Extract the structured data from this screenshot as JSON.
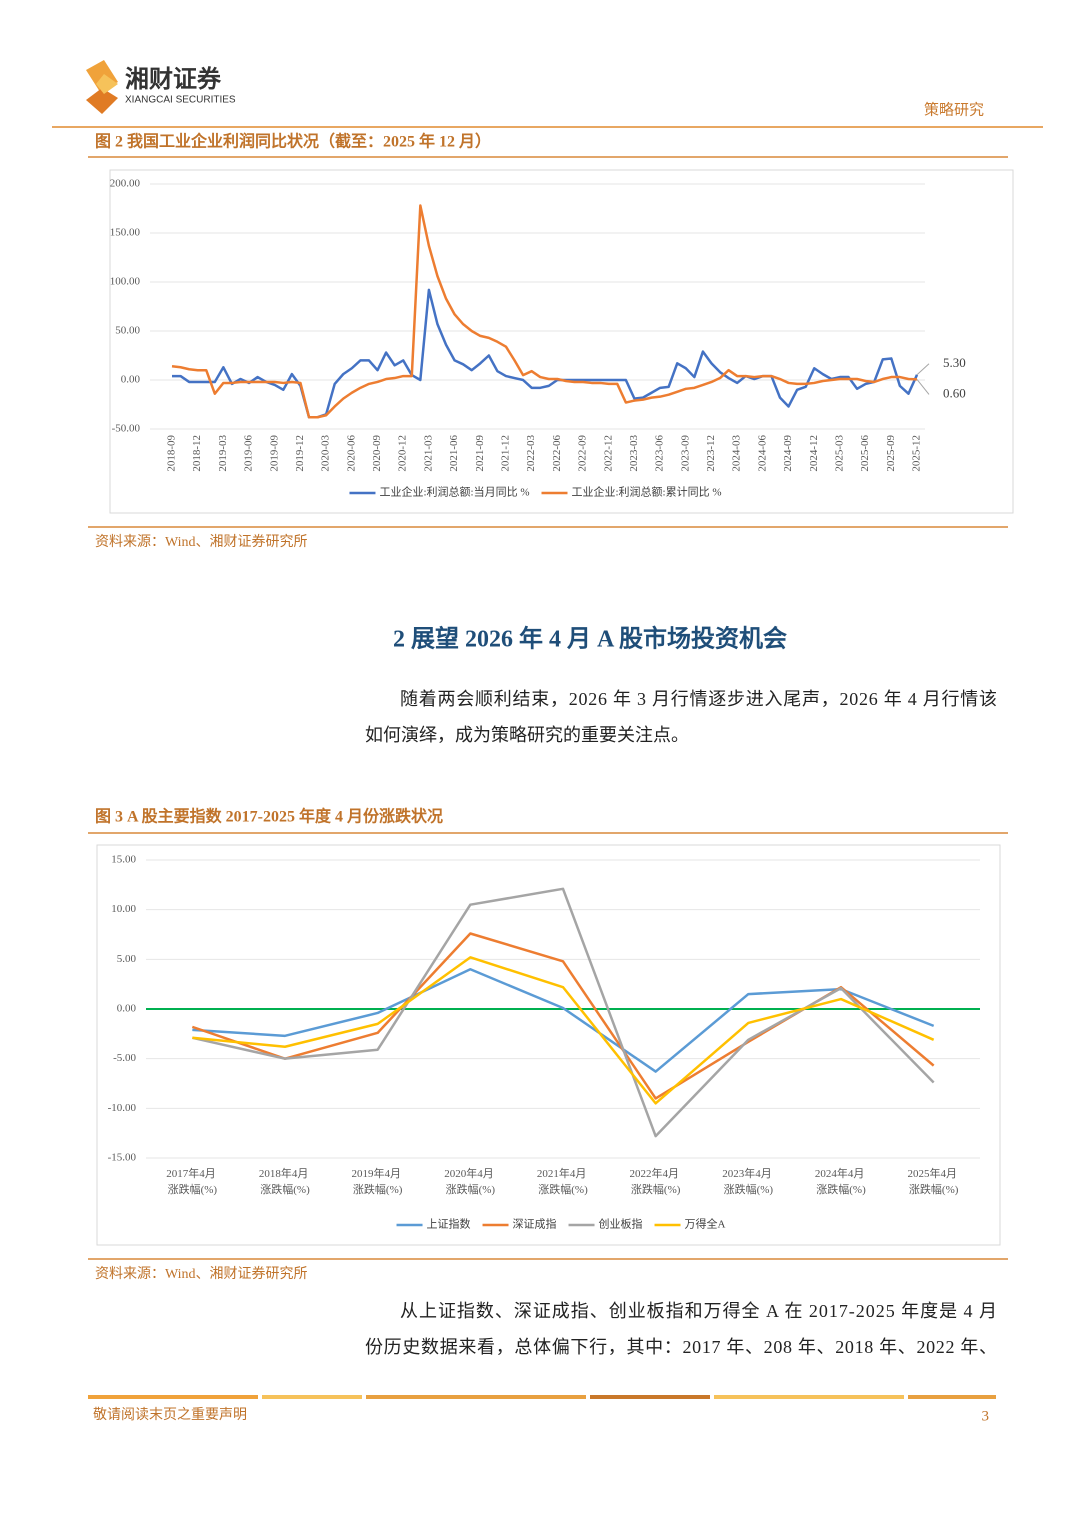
{
  "header": {
    "company_cn": "湘财证券",
    "company_en": "XIANGCAI SECURITIES",
    "section": "策略研究"
  },
  "figures": [
    {
      "title": "图 2  我国工业企业利润同比状况（截至：2025 年 12 月）",
      "source": "资料来源：Wind、湘财证券研究所"
    },
    {
      "title": "图 3 A 股主要指数 2017-2025 年度 4 月份涨跌状况",
      "source": "资料来源：Wind、湘财证券研究所"
    }
  ],
  "heading": "2  展望 2026 年 4 月 A 股市场投资机会",
  "paragraphs": [
    [
      "随着两会顺利结束，2026 年 3 月行情逐步进入尾声，2026 年 4 月行情该",
      "如何演绎，成为策略研究的重要关注点。"
    ],
    [
      "从上证指数、深证成指、创业板指和万得全 A 在 2017-2025 年度是 4 月",
      "份历史数据来看，总体偏下行，其中：2017 年、208 年、2018 年、2022 年、"
    ]
  ],
  "chart_data": [
    {
      "type": "line",
      "categories": [
        "2018-09",
        null,
        null,
        "2018-12",
        null,
        null,
        "2019-03",
        null,
        null,
        "2019-06",
        null,
        null,
        "2019-09",
        null,
        null,
        "2019-12",
        null,
        null,
        "2020-03",
        null,
        null,
        "2020-06",
        null,
        null,
        "2020-09",
        null,
        null,
        "2020-12",
        null,
        null,
        "2021-03",
        null,
        null,
        "2021-06",
        null,
        null,
        "2021-09",
        null,
        null,
        "2021-12",
        null,
        null,
        "2022-03",
        null,
        null,
        "2022-06",
        null,
        null,
        "2022-09",
        null,
        null,
        "2022-12",
        null,
        null,
        "2023-03",
        null,
        null,
        "2023-06",
        null,
        null,
        "2023-09",
        null,
        null,
        "2023-12",
        null,
        null,
        "2024-03",
        null,
        null,
        "2024-06",
        null,
        null,
        "2024-09",
        null,
        null,
        "2024-12",
        null,
        null,
        "2025-03",
        null,
        null,
        "2025-06",
        null,
        null,
        "2025-09",
        null,
        null,
        "2025-12"
      ],
      "series": [
        {
          "name": "工业企业:利润总额:当月同比 %",
          "color": "#4472c4",
          "values": [
            4,
            4,
            -2,
            -2,
            -2,
            -2,
            13,
            -4,
            1,
            -3,
            3,
            -2,
            -5,
            -10,
            6,
            -6,
            -38,
            -38,
            -35,
            -4,
            6,
            12,
            20,
            20,
            10,
            28,
            15,
            20,
            5,
            0,
            92,
            57,
            36,
            20,
            16,
            10,
            17,
            25,
            9,
            4,
            2,
            0,
            -8,
            -8,
            -6,
            0,
            0,
            0,
            0,
            0,
            0,
            0,
            0,
            0,
            -19,
            -18,
            -13,
            -8,
            -7,
            17,
            12,
            3,
            29,
            17,
            8,
            2,
            -3,
            4,
            1,
            4,
            4,
            -18,
            -27,
            -10,
            -7,
            12,
            6,
            1,
            3,
            3,
            -9,
            -4,
            -2,
            21,
            22,
            -6,
            -14,
            5.3
          ],
          "value_labels": [
            null,
            null,
            null,
            null,
            null,
            null,
            null,
            null,
            null,
            null,
            null,
            null,
            null,
            null,
            null,
            null,
            null,
            null,
            null,
            null,
            null,
            null,
            null,
            null,
            null,
            null,
            null,
            null,
            null,
            null,
            null,
            null,
            null,
            null,
            null,
            null,
            null,
            null,
            null,
            null,
            null,
            null,
            null,
            null,
            null,
            null,
            null,
            null,
            null,
            null,
            null,
            null,
            null,
            null,
            null,
            null,
            null,
            null,
            null,
            null,
            null,
            null,
            null,
            null,
            null,
            null,
            null,
            null,
            null,
            null,
            null,
            null,
            null,
            null,
            null,
            null,
            null,
            null,
            null,
            null,
            null,
            null,
            null,
            null,
            null,
            null,
            null,
            "5.30"
          ]
        },
        {
          "name": "工业企业:利润总额:累计同比 %",
          "color": "#ed7d31",
          "values": [
            14,
            13,
            11,
            10,
            10,
            -14,
            -3,
            -3,
            -2,
            -2,
            -2,
            -2,
            -2,
            -3,
            -2,
            -3,
            -38,
            -38,
            -36,
            -27,
            -19,
            -13,
            -8,
            -4,
            -2,
            1,
            2,
            4,
            4,
            178,
            137,
            106,
            83,
            67,
            57,
            50,
            45,
            43,
            39,
            34,
            20,
            5,
            9,
            3,
            1,
            1,
            -1,
            -2,
            -2,
            -3,
            -3,
            -4,
            -4,
            -23,
            -21,
            -20,
            -18,
            -17,
            -15,
            -12,
            -9,
            -8,
            -5,
            -2,
            2,
            10,
            4,
            4,
            3,
            4,
            4,
            1,
            -3,
            -4,
            -4,
            -3,
            -1,
            0,
            1,
            1,
            1,
            -1,
            -2,
            1,
            3,
            3,
            1,
            0.6
          ],
          "value_labels": [
            null,
            null,
            null,
            null,
            null,
            null,
            null,
            null,
            null,
            null,
            null,
            null,
            null,
            null,
            null,
            null,
            null,
            null,
            null,
            null,
            null,
            null,
            null,
            null,
            null,
            null,
            null,
            null,
            null,
            null,
            null,
            null,
            null,
            null,
            null,
            null,
            null,
            null,
            null,
            null,
            null,
            null,
            null,
            null,
            null,
            null,
            null,
            null,
            null,
            null,
            null,
            null,
            null,
            null,
            null,
            null,
            null,
            null,
            null,
            null,
            null,
            null,
            null,
            null,
            null,
            null,
            null,
            null,
            null,
            null,
            null,
            null,
            null,
            null,
            null,
            null,
            null,
            null,
            null,
            null,
            null,
            null,
            null,
            null,
            null,
            null,
            null,
            "0.60"
          ]
        }
      ],
      "ylim": [
        -50,
        200
      ],
      "yticks": [
        {
          "value": -50,
          "label": "-50.00"
        },
        {
          "value": 0,
          "label": "0.00"
        },
        {
          "value": 50,
          "label": "50.00"
        },
        {
          "value": 100,
          "label": "100.00"
        },
        {
          "value": 150,
          "label": "150.00"
        },
        {
          "value": 200,
          "label": "200.00"
        }
      ],
      "grid": true,
      "legend": "bottom"
    },
    {
      "type": "line",
      "categories": [
        "2017年4月 涨跌幅(%)",
        "2018年4月 涨跌幅(%)",
        "2019年4月 涨跌幅(%)",
        "2020年4月 涨跌幅(%)",
        "2021年4月 涨跌幅(%)",
        "2022年4月 涨跌幅(%)",
        "2023年4月 涨跌幅(%)",
        "2024年4月 涨跌幅(%)",
        "2025年4月 涨跌幅(%)"
      ],
      "series": [
        {
          "name": "上证指数",
          "color": "#5b9bd5",
          "values": [
            -2.1,
            -2.7,
            -0.4,
            4.0,
            0.1,
            -6.3,
            1.5,
            2.0,
            -1.7
          ]
        },
        {
          "name": "深证成指",
          "color": "#ed7d31",
          "values": [
            -1.8,
            -5.0,
            -2.4,
            7.6,
            4.8,
            -9.0,
            -3.3,
            2.2,
            -5.7
          ]
        },
        {
          "name": "创业板指",
          "color": "#a5a5a5",
          "values": [
            -2.9,
            -5.0,
            -4.1,
            10.5,
            12.1,
            -12.8,
            -3.1,
            2.1,
            -7.4
          ]
        },
        {
          "name": "万得全A",
          "color": "#ffc000",
          "values": [
            -2.9,
            -3.8,
            -1.5,
            5.2,
            2.2,
            -9.5,
            -1.4,
            1.0,
            -3.1
          ]
        }
      ],
      "ylim": [
        -15,
        15
      ],
      "yticks": [
        {
          "value": -15,
          "label": "-15.00"
        },
        {
          "value": -10,
          "label": "-10.00"
        },
        {
          "value": -5,
          "label": "-5.00"
        },
        {
          "value": 0,
          "label": "0.00"
        },
        {
          "value": 5,
          "label": "5.00"
        },
        {
          "value": 10,
          "label": "10.00"
        },
        {
          "value": 15,
          "label": "15.00"
        }
      ],
      "grid": true,
      "zero_line_color": "#00b050",
      "legend": "bottom"
    }
  ],
  "footer": {
    "note": "敬请阅读末页之重要声明",
    "page": 3
  }
}
